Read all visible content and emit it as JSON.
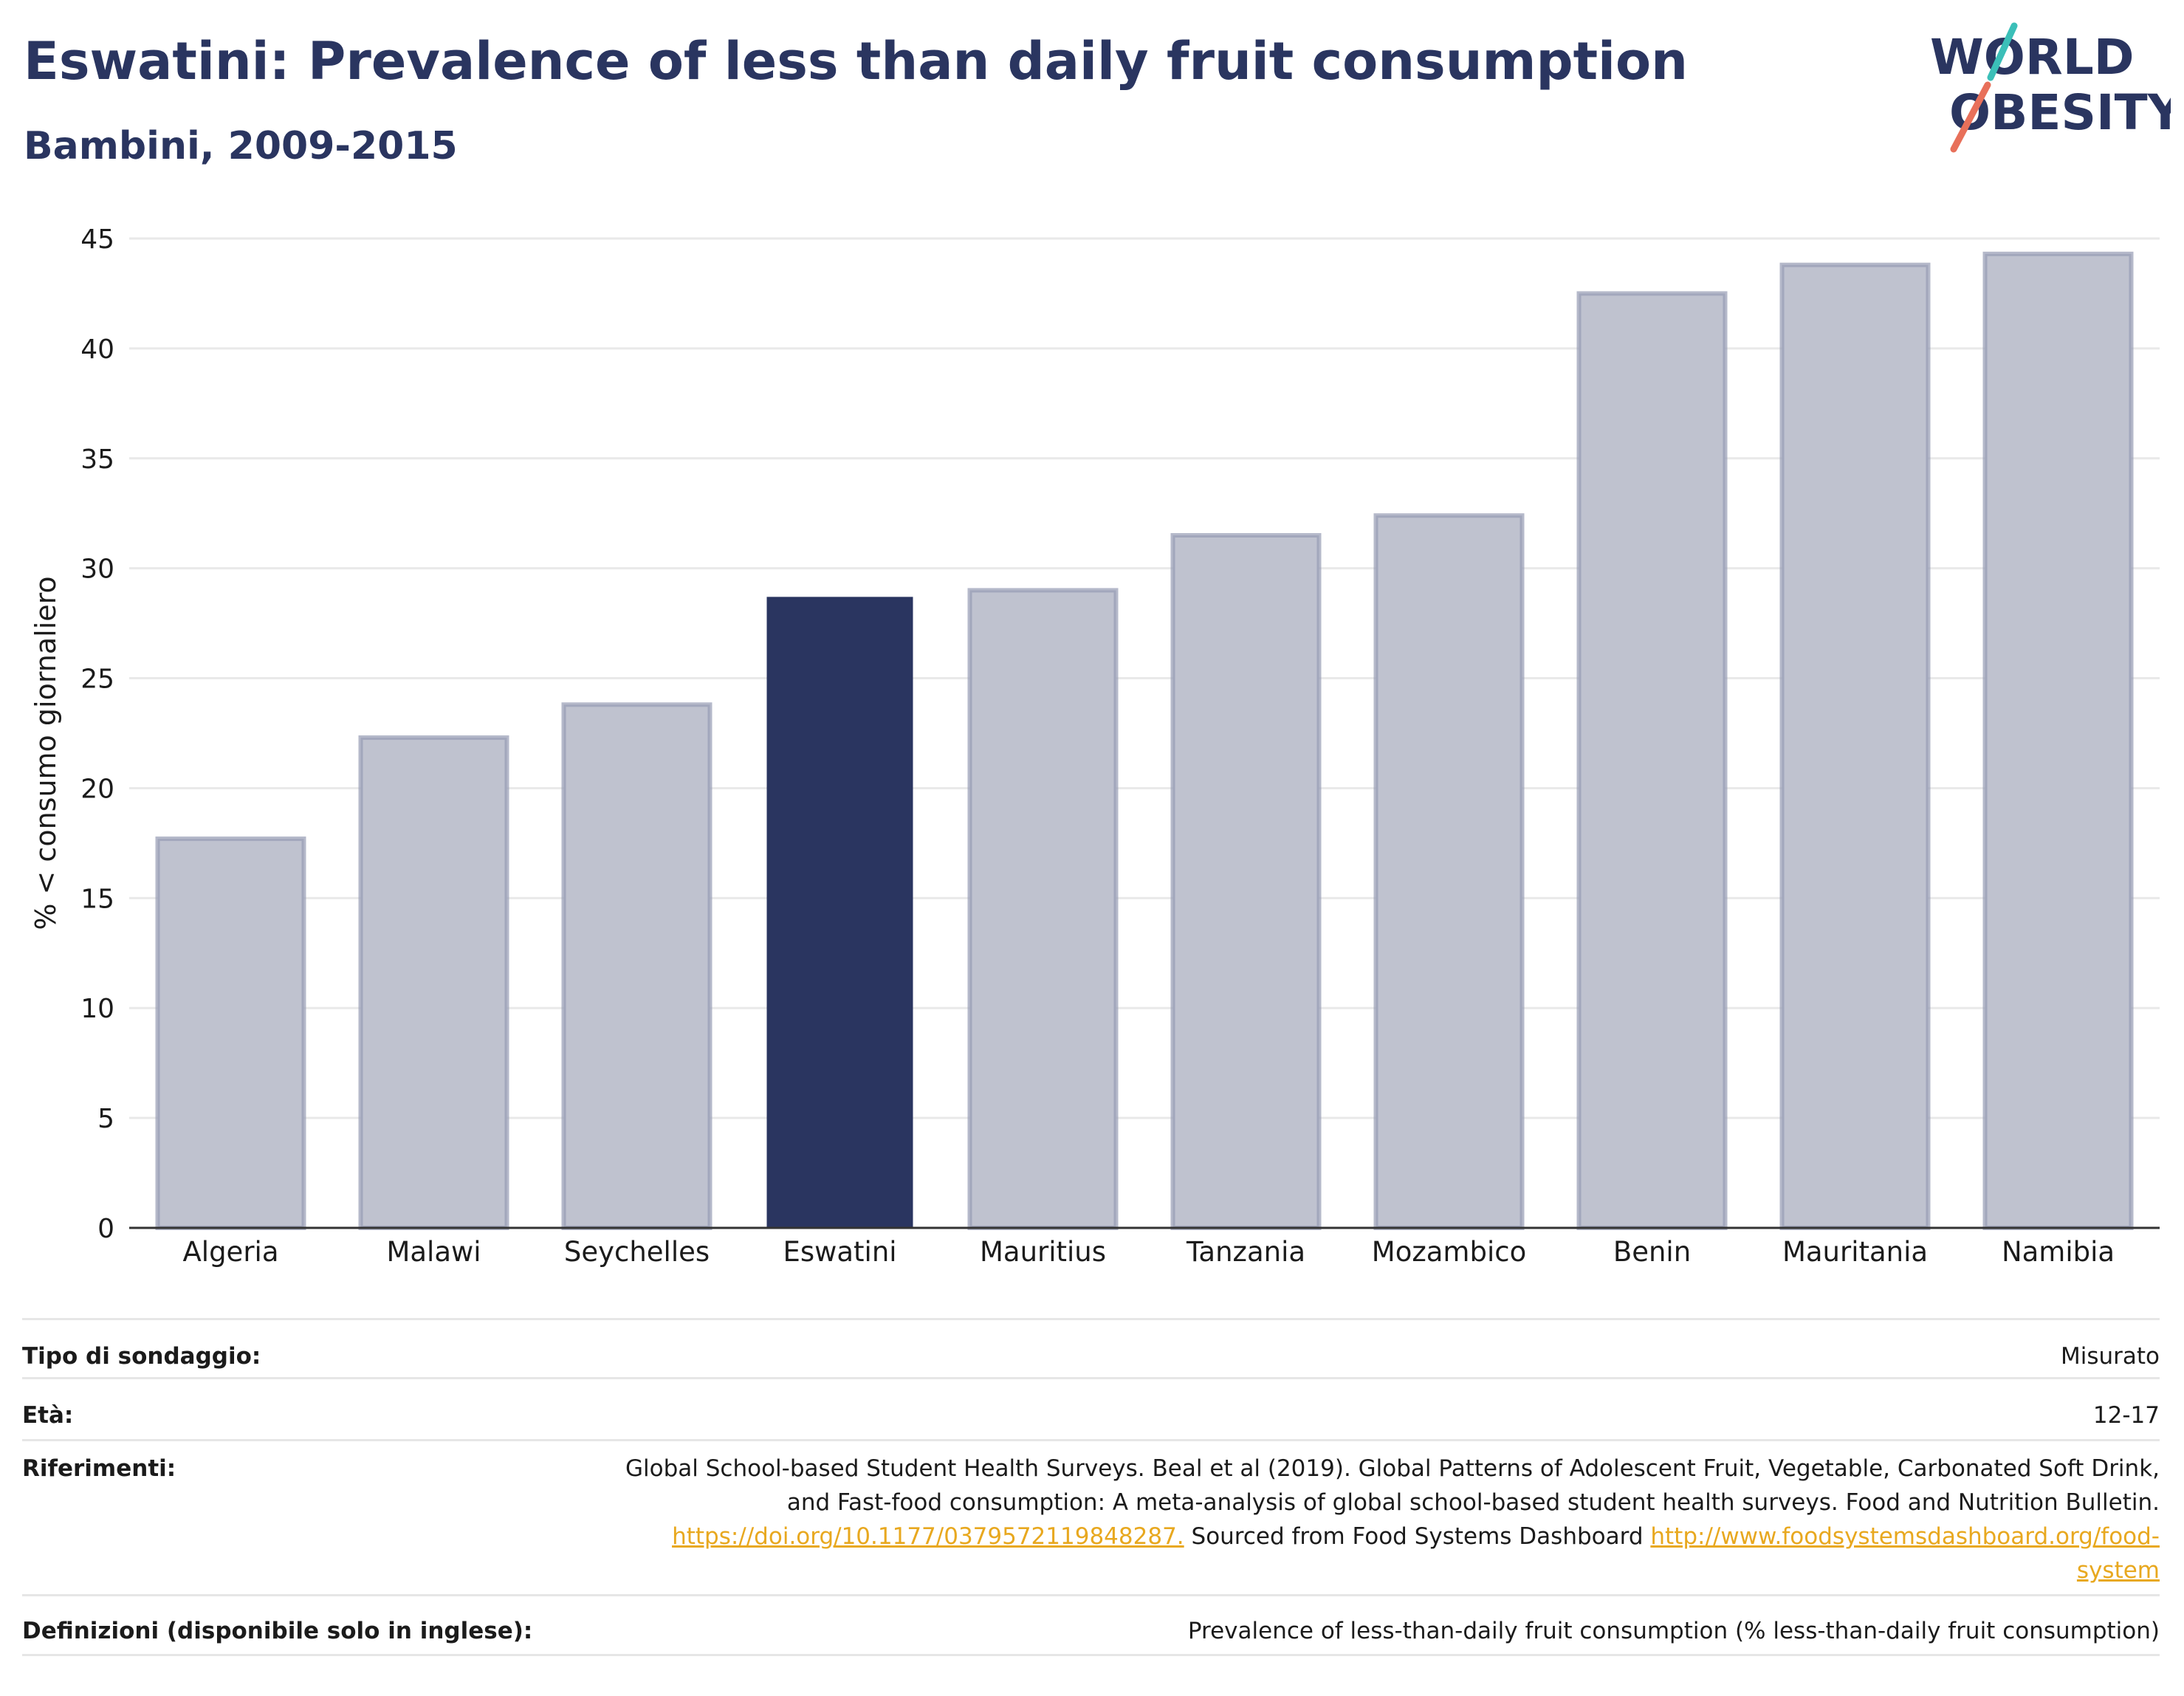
{
  "header": {
    "title": "Eswatini: Prevalence of less than daily fruit consumption",
    "subtitle": "Bambini, 2009-2015"
  },
  "logo": {
    "line1": "WORLD",
    "line2": "OBESITY",
    "accent_teal": "#3bbfb8",
    "accent_coral": "#e8705a",
    "text_color": "#2a3560"
  },
  "chart_data": {
    "type": "bar",
    "categories": [
      "Algeria",
      "Malawi",
      "Seychelles",
      "Eswatini",
      "Mauritius",
      "Tanzania",
      "Mozambico",
      "Benin",
      "Mauritania",
      "Namibia"
    ],
    "values": [
      17.7,
      22.3,
      23.8,
      28.7,
      29.0,
      31.5,
      32.4,
      42.5,
      43.8,
      44.3
    ],
    "highlight": "Eswatini",
    "ylabel": "% < consumo giornaliero",
    "ylim": [
      0,
      45
    ],
    "yticks": [
      0,
      5,
      10,
      15,
      20,
      25,
      30,
      35,
      40,
      45
    ],
    "grid": true,
    "colors": {
      "bar": "#bfc2cf",
      "bar_border": "#959bb3",
      "highlight": "#2a3560",
      "axis": "#333333",
      "grid": "#e9e9e9"
    }
  },
  "info": {
    "survey_label": "Tipo di sondaggio:",
    "survey_value": "Misurato",
    "age_label": "Età:",
    "age_value": "12-17",
    "refs_label": "Riferimenti:",
    "refs_text1": "Global School-based Student Health Surveys. Beal et al (2019). Global Patterns of Adolescent Fruit, Vegetable, Carbonated Soft Drink, and Fast-food consumption: A meta-analysis of global school-based student health surveys. Food and Nutrition Bulletin.",
    "refs_link1": "https://doi.org/10.1177/0379572119848287.",
    "refs_text2": "Sourced from Food Systems Dashboard",
    "refs_link2": "http://www.foodsystemsdashboard.org/food-system",
    "defs_label": "Definizioni (disponibile solo in inglese):",
    "defs_value": "Prevalence of less-than-daily fruit consumption (% less-than-daily fruit consumption)"
  }
}
